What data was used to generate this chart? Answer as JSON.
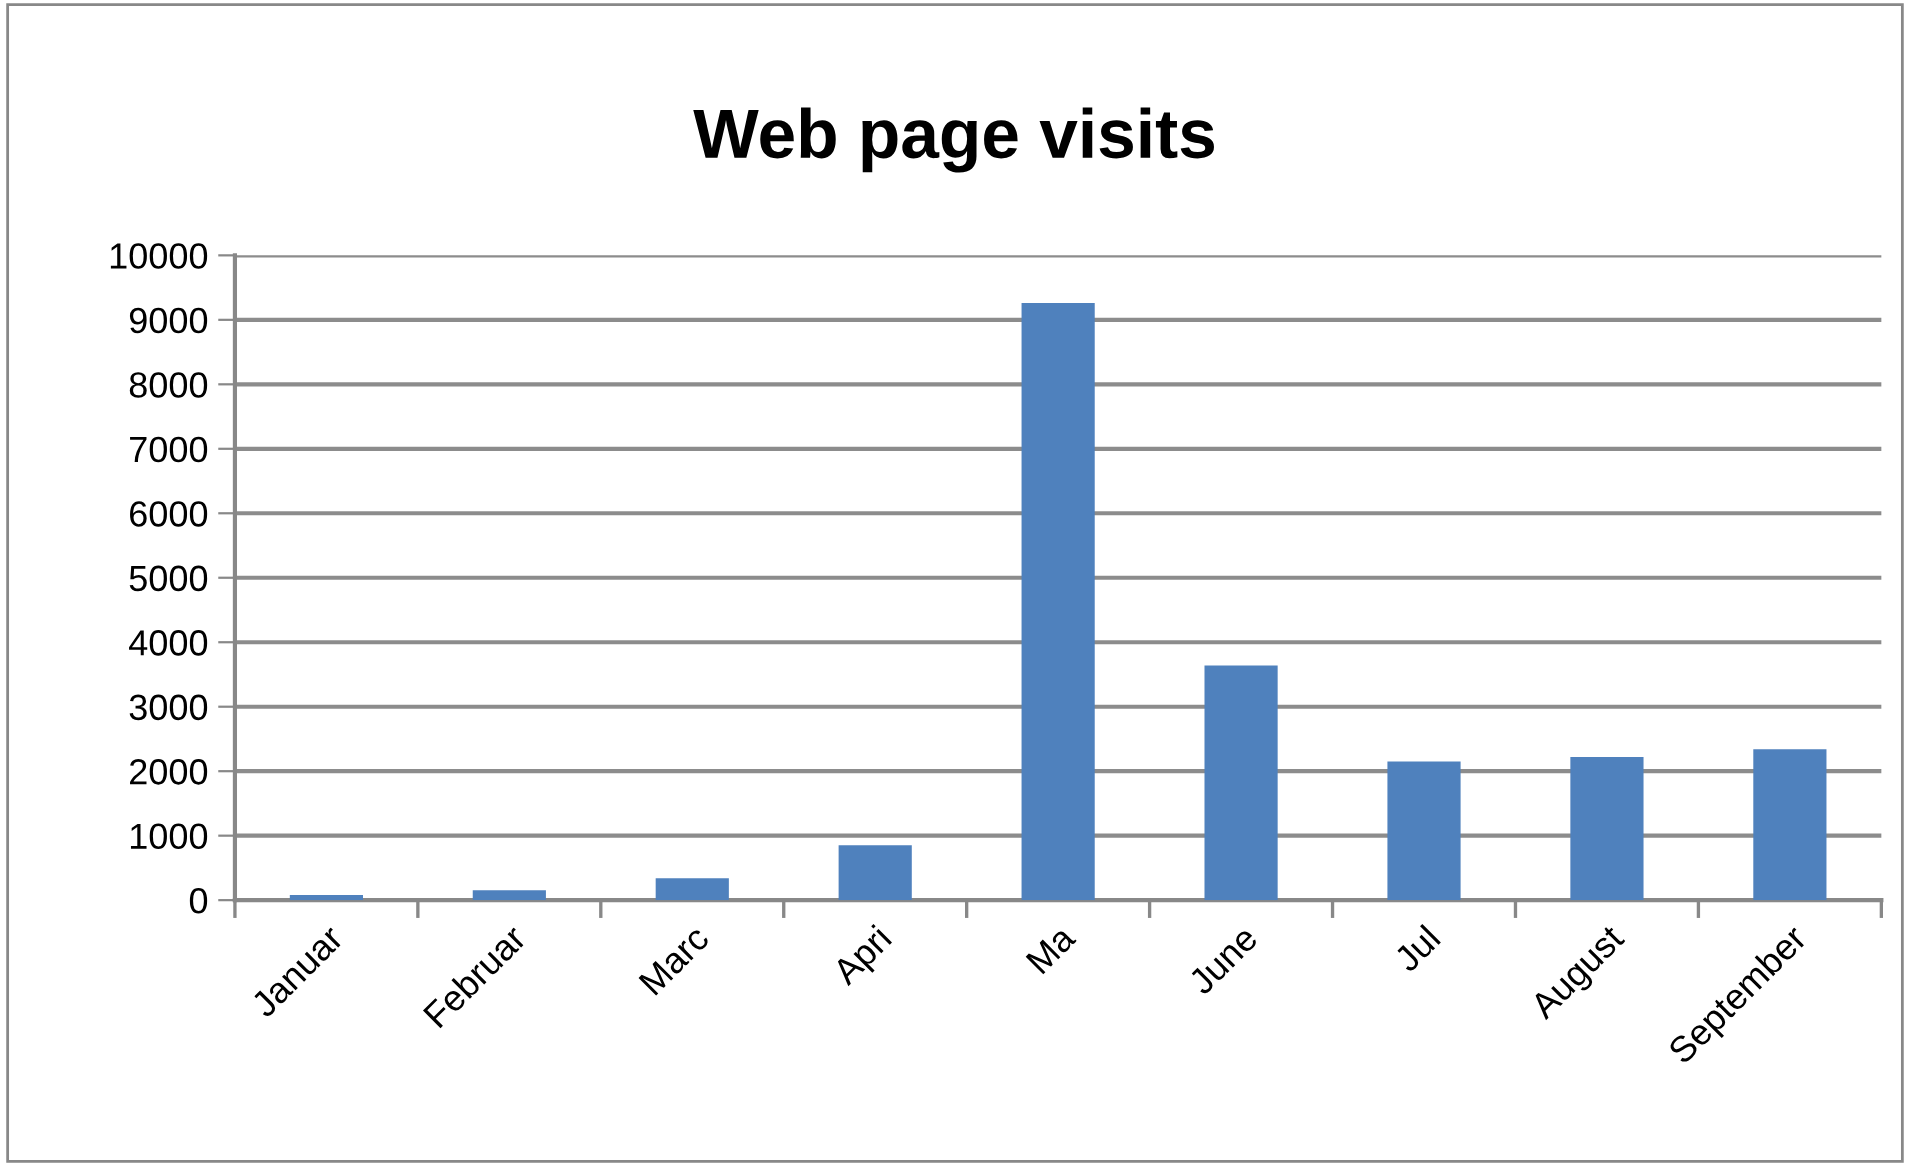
{
  "chart_data": {
    "type": "bar",
    "title": "Web page visits",
    "categories": [
      "Januar",
      "Februar",
      "Marc",
      "Apri",
      "Ma",
      "June",
      "Jul",
      "August",
      "September"
    ],
    "values": [
      80,
      155,
      340,
      850,
      9260,
      3640,
      2150,
      2220,
      2340
    ],
    "color": "#4f81bd",
    "ylim": [
      0,
      10000
    ],
    "yticks": [
      0,
      1000,
      2000,
      3000,
      4000,
      5000,
      6000,
      7000,
      8000,
      9000,
      10000
    ],
    "grid": "y",
    "legend": false
  }
}
